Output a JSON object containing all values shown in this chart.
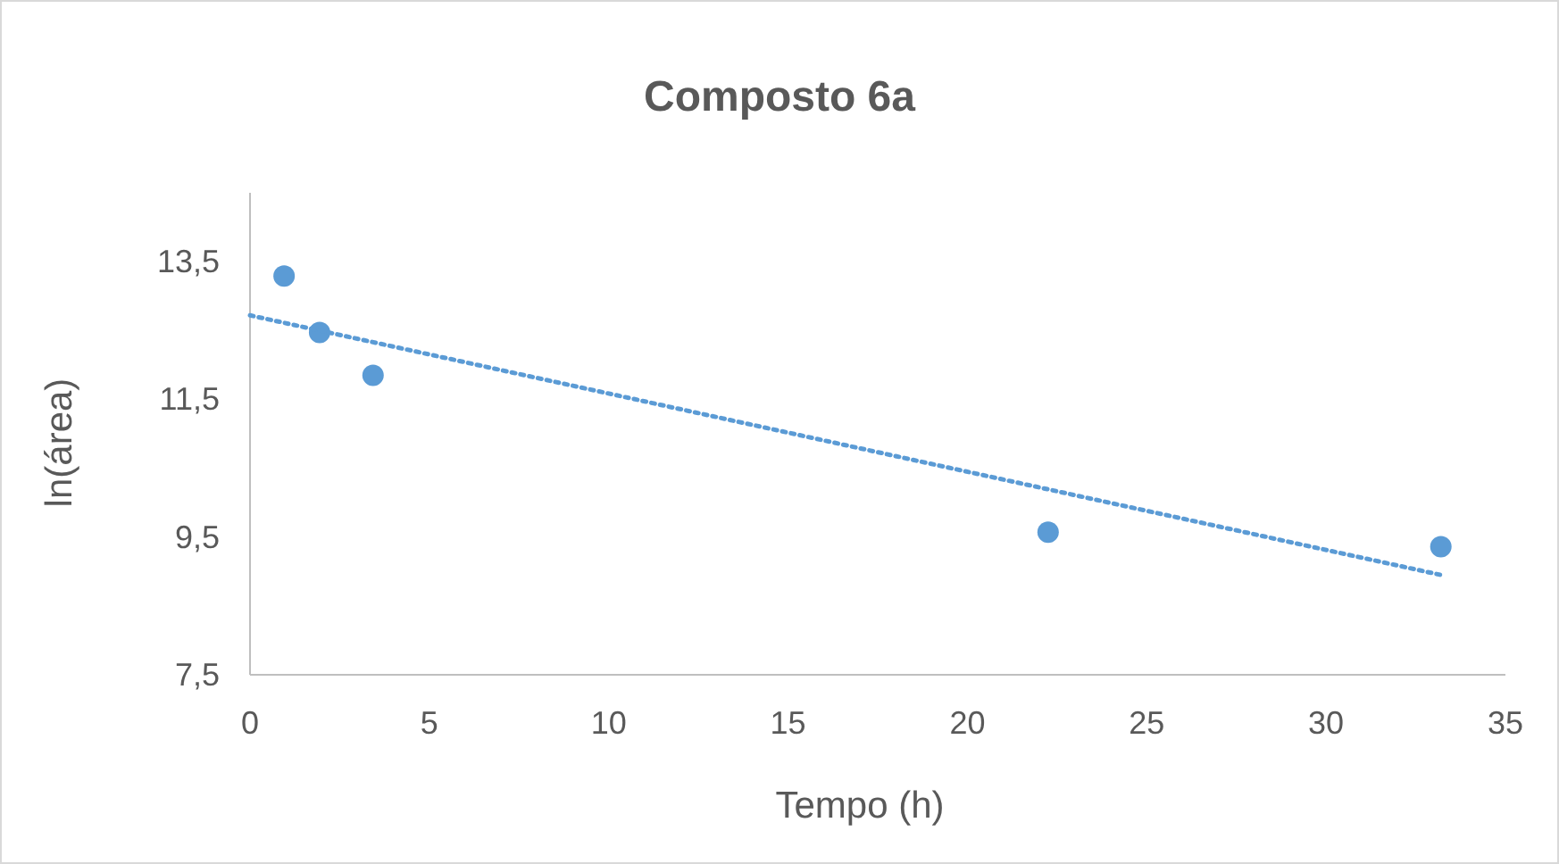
{
  "chart_data": {
    "type": "scatter",
    "title": "Composto 6a",
    "xlabel": "Tempo  (h)",
    "ylabel": "ln(área)",
    "xlim": [
      0,
      35
    ],
    "xticks": [
      0,
      5,
      10,
      15,
      20,
      25,
      30,
      35
    ],
    "ylim": [
      7.5,
      14.5
    ],
    "yticks": [
      {
        "value": 7.5,
        "label": "7,5"
      },
      {
        "value": 9.5,
        "label": "9,5"
      },
      {
        "value": 11.5,
        "label": "11,5"
      },
      {
        "value": 13.5,
        "label": "13,5"
      }
    ],
    "grid": false,
    "marker": "circle",
    "series": [
      {
        "color": "#5b9bd5",
        "x": [
          0.95,
          1.94,
          3.43,
          22.25,
          33.2
        ],
        "values": [
          13.29,
          12.47,
          11.85,
          9.57,
          9.36
        ]
      },
      {
        "type": "line",
        "color": "#5b9bd5",
        "line_style": "dotted",
        "marker": "none",
        "x": [
          0,
          33.2
        ],
        "values": [
          12.72,
          8.95
        ]
      }
    ]
  }
}
